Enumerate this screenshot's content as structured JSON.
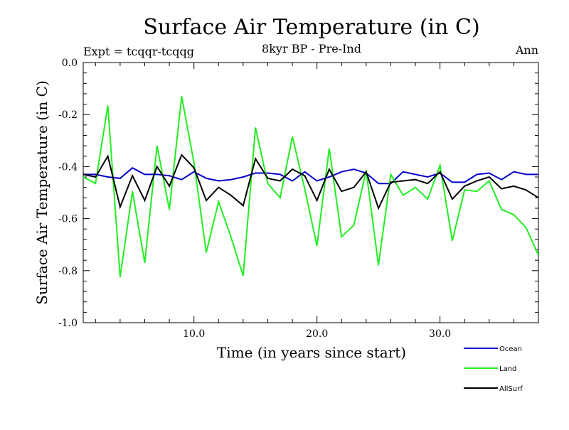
{
  "chart_data": {
    "type": "line",
    "title": "Surface Air Temperature (in C)",
    "subtitle_left": "Expt = tcqqr-tcqqg",
    "subtitle_center": "8kyr BP - Pre-Ind",
    "subtitle_right": "Ann",
    "xlabel": "Time (in years since start)",
    "ylabel": "Surface Air Temperature (in C)",
    "xlim": [
      1,
      38
    ],
    "ylim": [
      -1.0,
      0.0
    ],
    "xticks": [
      10,
      20,
      30
    ],
    "xtick_labels": [
      "10.0",
      "20.0",
      "30.0"
    ],
    "yticks": [
      0.0,
      -0.2,
      -0.4,
      -0.6,
      -0.8,
      -1.0
    ],
    "ytick_labels": [
      "0.0",
      "-0.2",
      "-0.4",
      "-0.6",
      "-0.8",
      "-1.0"
    ],
    "x": [
      1,
      2,
      3,
      4,
      5,
      6,
      7,
      8,
      9,
      10,
      11,
      12,
      13,
      14,
      15,
      16,
      17,
      18,
      19,
      20,
      21,
      22,
      23,
      24,
      25,
      26,
      27,
      28,
      29,
      30,
      31,
      32,
      33,
      34,
      35,
      36,
      37,
      38
    ],
    "series": [
      {
        "name": "Ocean",
        "color": "#0000cc",
        "values": [
          -0.43,
          -0.43,
          -0.44,
          -0.445,
          -0.405,
          -0.43,
          -0.43,
          -0.435,
          -0.45,
          -0.42,
          -0.445,
          -0.455,
          -0.45,
          -0.44,
          -0.425,
          -0.425,
          -0.43,
          -0.455,
          -0.42,
          -0.455,
          -0.44,
          -0.42,
          -0.41,
          -0.425,
          -0.465,
          -0.465,
          -0.42,
          -0.43,
          -0.44,
          -0.425,
          -0.46,
          -0.46,
          -0.43,
          -0.425,
          -0.45,
          -0.42,
          -0.43,
          -0.43
        ]
      },
      {
        "name": "Land",
        "color": "#22ee22",
        "values": [
          -0.44,
          -0.465,
          -0.165,
          -0.825,
          -0.495,
          -0.77,
          -0.32,
          -0.565,
          -0.13,
          -0.385,
          -0.73,
          -0.535,
          -0.67,
          -0.82,
          -0.25,
          -0.465,
          -0.52,
          -0.285,
          -0.485,
          -0.705,
          -0.33,
          -0.67,
          -0.625,
          -0.415,
          -0.78,
          -0.43,
          -0.51,
          -0.48,
          -0.525,
          -0.395,
          -0.685,
          -0.49,
          -0.495,
          -0.455,
          -0.565,
          -0.585,
          -0.635,
          -0.74
        ]
      },
      {
        "name": "AllSurf",
        "color": "#000000",
        "values": [
          -0.43,
          -0.44,
          -0.36,
          -0.555,
          -0.435,
          -0.53,
          -0.4,
          -0.475,
          -0.355,
          -0.405,
          -0.53,
          -0.48,
          -0.51,
          -0.55,
          -0.37,
          -0.445,
          -0.455,
          -0.41,
          -0.435,
          -0.53,
          -0.41,
          -0.495,
          -0.48,
          -0.42,
          -0.56,
          -0.46,
          -0.455,
          -0.45,
          -0.465,
          -0.42,
          -0.525,
          -0.475,
          -0.455,
          -0.44,
          -0.485,
          -0.475,
          -0.49,
          -0.52
        ]
      }
    ],
    "legend_position": "bottom-right"
  }
}
